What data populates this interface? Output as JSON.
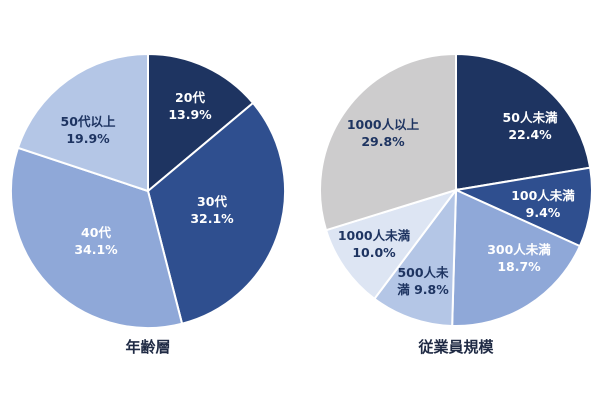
{
  "chart_data": [
    {
      "type": "pie",
      "title": "年齢層",
      "slices": [
        {
          "label": "20代",
          "value": 13.9,
          "value_text": "13.9%",
          "color": "#1e3461",
          "label_color": "#ffffff"
        },
        {
          "label": "30代",
          "value": 32.1,
          "value_text": "32.1%",
          "color": "#2f4f8f",
          "label_color": "#ffffff"
        },
        {
          "label": "40代",
          "value": 34.1,
          "value_text": "34.1%",
          "color": "#8fa8d8",
          "label_color": "#ffffff"
        },
        {
          "label": "50代以上",
          "value": 19.9,
          "value_text": "19.9%",
          "color": "#b4c6e6",
          "label_color": "#1e3461"
        }
      ]
    },
    {
      "type": "pie",
      "title": "従業員規模",
      "slices": [
        {
          "label": "50人未満",
          "value": 22.4,
          "value_text": "22.4%",
          "color": "#1e3461",
          "label_color": "#ffffff"
        },
        {
          "label": "100人未満",
          "value": 9.4,
          "value_text": "9.4%",
          "color": "#2f4f8f",
          "label_color": "#ffffff"
        },
        {
          "label": "300人未満",
          "value": 18.7,
          "value_text": "18.7%",
          "color": "#8fa8d8",
          "label_color": "#ffffff"
        },
        {
          "label": "500人未満",
          "value": 9.8,
          "value_text": "満 9.8%",
          "label_lines": [
            "500人未",
            "満 9.8%"
          ],
          "color": "#b4c6e6",
          "label_color": "#1e3461"
        },
        {
          "label": "1000人未満",
          "value": 10.0,
          "value_text": "10.0%",
          "color": "#dde5f3",
          "label_color": "#1e3461"
        },
        {
          "label": "1000人以上",
          "value": 29.8,
          "value_text": "29.8%",
          "color": "#cdcccd",
          "label_color": "#1e3461"
        }
      ]
    }
  ]
}
